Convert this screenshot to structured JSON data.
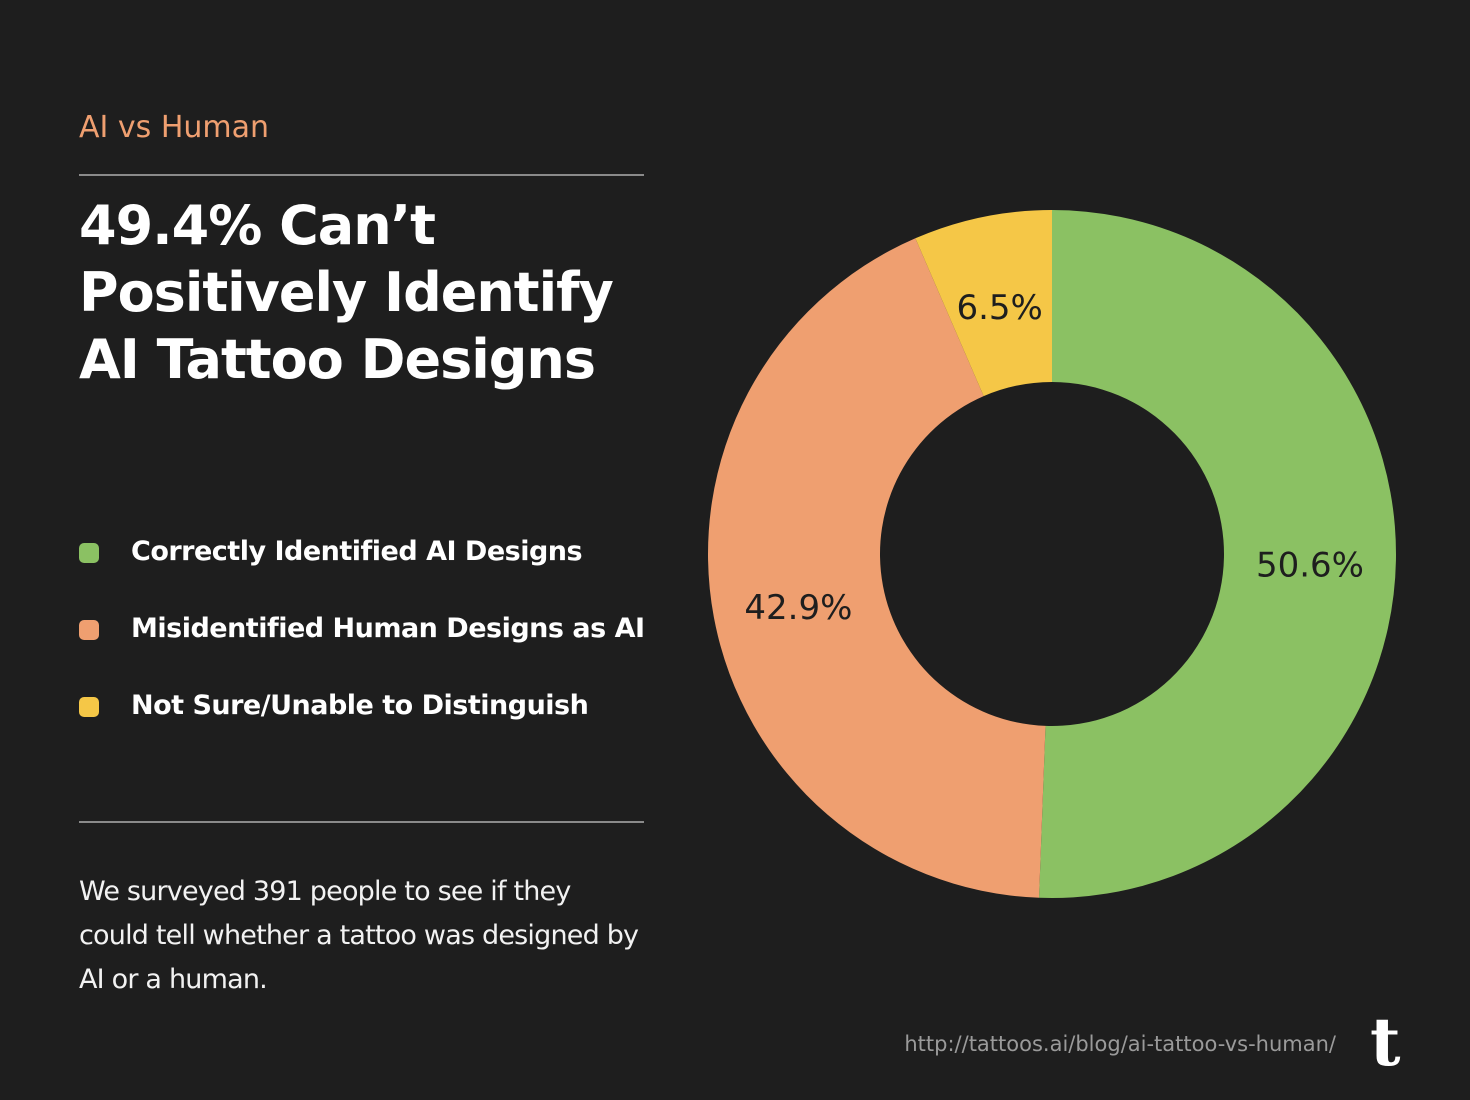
{
  "eyebrow": "AI vs Human",
  "title_lines": [
    "49.4% Can’t",
    "Positively Identify",
    "AI Tattoo Designs"
  ],
  "description_lines": [
    "We surveyed 391 people to see if they",
    "could tell whether a tattoo was designed by",
    "AI or a human."
  ],
  "footer": {
    "url": "http://tattoos.ai/blog/ai-tattoo-vs-human/",
    "logo": "t"
  },
  "chart_data": {
    "type": "donut",
    "categories": [
      "Correctly Identified AI Designs",
      "Misidentified Human Designs as AI",
      "Not Sure/Unable to Distinguish"
    ],
    "values": [
      50.6,
      42.9,
      6.5
    ],
    "value_labels": [
      "50.6%",
      "42.9%",
      "6.5%"
    ],
    "colors": [
      "#8bc163",
      "#ef9f70",
      "#f5c747"
    ]
  }
}
